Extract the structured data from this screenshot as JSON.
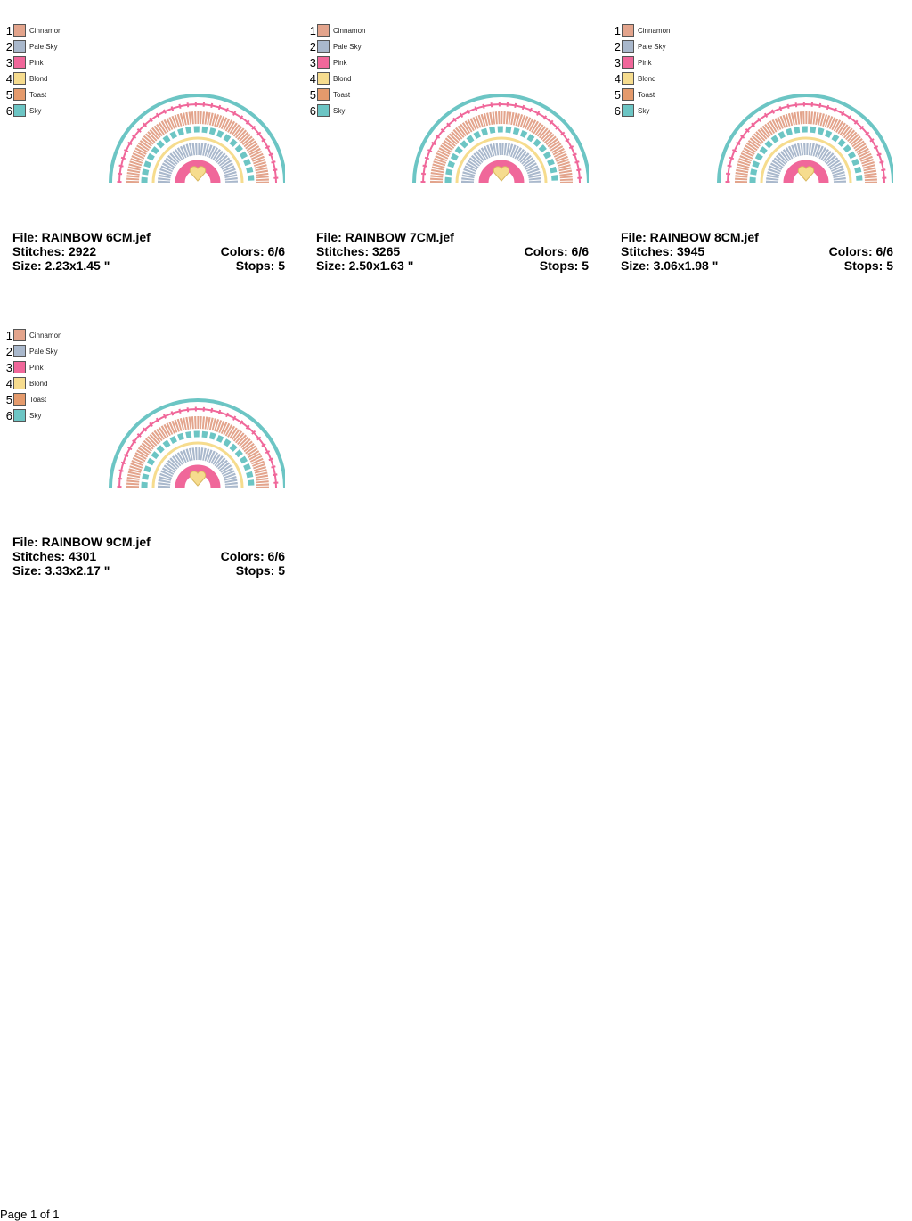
{
  "designs": [
    {
      "palette": [
        {
          "number": "1",
          "name": "Cinnamon",
          "color": "#e3a48c"
        },
        {
          "number": "2",
          "name": "Pale Sky",
          "color": "#a9b8cc"
        },
        {
          "number": "3",
          "name": "Pink",
          "color": "#f0679a"
        },
        {
          "number": "4",
          "name": "Blond",
          "color": "#f6dc8e"
        },
        {
          "number": "5",
          "name": "Toast",
          "color": "#e49a6c"
        },
        {
          "number": "6",
          "name": "Sky",
          "color": "#6cc5c4"
        }
      ],
      "file": "File: RAINBOW 6CM.jef",
      "stitches": "Stitches: 2922",
      "colors": "Colors: 6/6",
      "size": "Size: 2.23x1.45 \"",
      "stops": "Stops: 5"
    },
    {
      "palette": [
        {
          "number": "1",
          "name": "Cinnamon",
          "color": "#e3a48c"
        },
        {
          "number": "2",
          "name": "Pale Sky",
          "color": "#a9b8cc"
        },
        {
          "number": "3",
          "name": "Pink",
          "color": "#f0679a"
        },
        {
          "number": "4",
          "name": "Blond",
          "color": "#f6dc8e"
        },
        {
          "number": "5",
          "name": "Toast",
          "color": "#e49a6c"
        },
        {
          "number": "6",
          "name": "Sky",
          "color": "#6cc5c4"
        }
      ],
      "file": "File: RAINBOW 7CM.jef",
      "stitches": "Stitches: 3265",
      "colors": "Colors: 6/6",
      "size": "Size: 2.50x1.63 \"",
      "stops": "Stops: 5"
    },
    {
      "palette": [
        {
          "number": "1",
          "name": "Cinnamon",
          "color": "#e3a48c"
        },
        {
          "number": "2",
          "name": "Pale Sky",
          "color": "#a9b8cc"
        },
        {
          "number": "3",
          "name": "Pink",
          "color": "#f0679a"
        },
        {
          "number": "4",
          "name": "Blond",
          "color": "#f6dc8e"
        },
        {
          "number": "5",
          "name": "Toast",
          "color": "#e49a6c"
        },
        {
          "number": "6",
          "name": "Sky",
          "color": "#6cc5c4"
        }
      ],
      "file": "File: RAINBOW 8CM.jef",
      "stitches": "Stitches: 3945",
      "colors": "Colors: 6/6",
      "size": "Size: 3.06x1.98 \"",
      "stops": "Stops: 5"
    },
    {
      "palette": [
        {
          "number": "1",
          "name": "Cinnamon",
          "color": "#e3a48c"
        },
        {
          "number": "2",
          "name": "Pale Sky",
          "color": "#a9b8cc"
        },
        {
          "number": "3",
          "name": "Pink",
          "color": "#f0679a"
        },
        {
          "number": "4",
          "name": "Blond",
          "color": "#f6dc8e"
        },
        {
          "number": "5",
          "name": "Toast",
          "color": "#e49a6c"
        },
        {
          "number": "6",
          "name": "Sky",
          "color": "#6cc5c4"
        }
      ],
      "file": "File: RAINBOW 9CM.jef",
      "stitches": "Stitches: 4301",
      "colors": "Colors: 6/6",
      "size": "Size: 3.33x2.17 \"",
      "stops": "Stops: 5"
    }
  ],
  "footer": "Page 1 of 1"
}
